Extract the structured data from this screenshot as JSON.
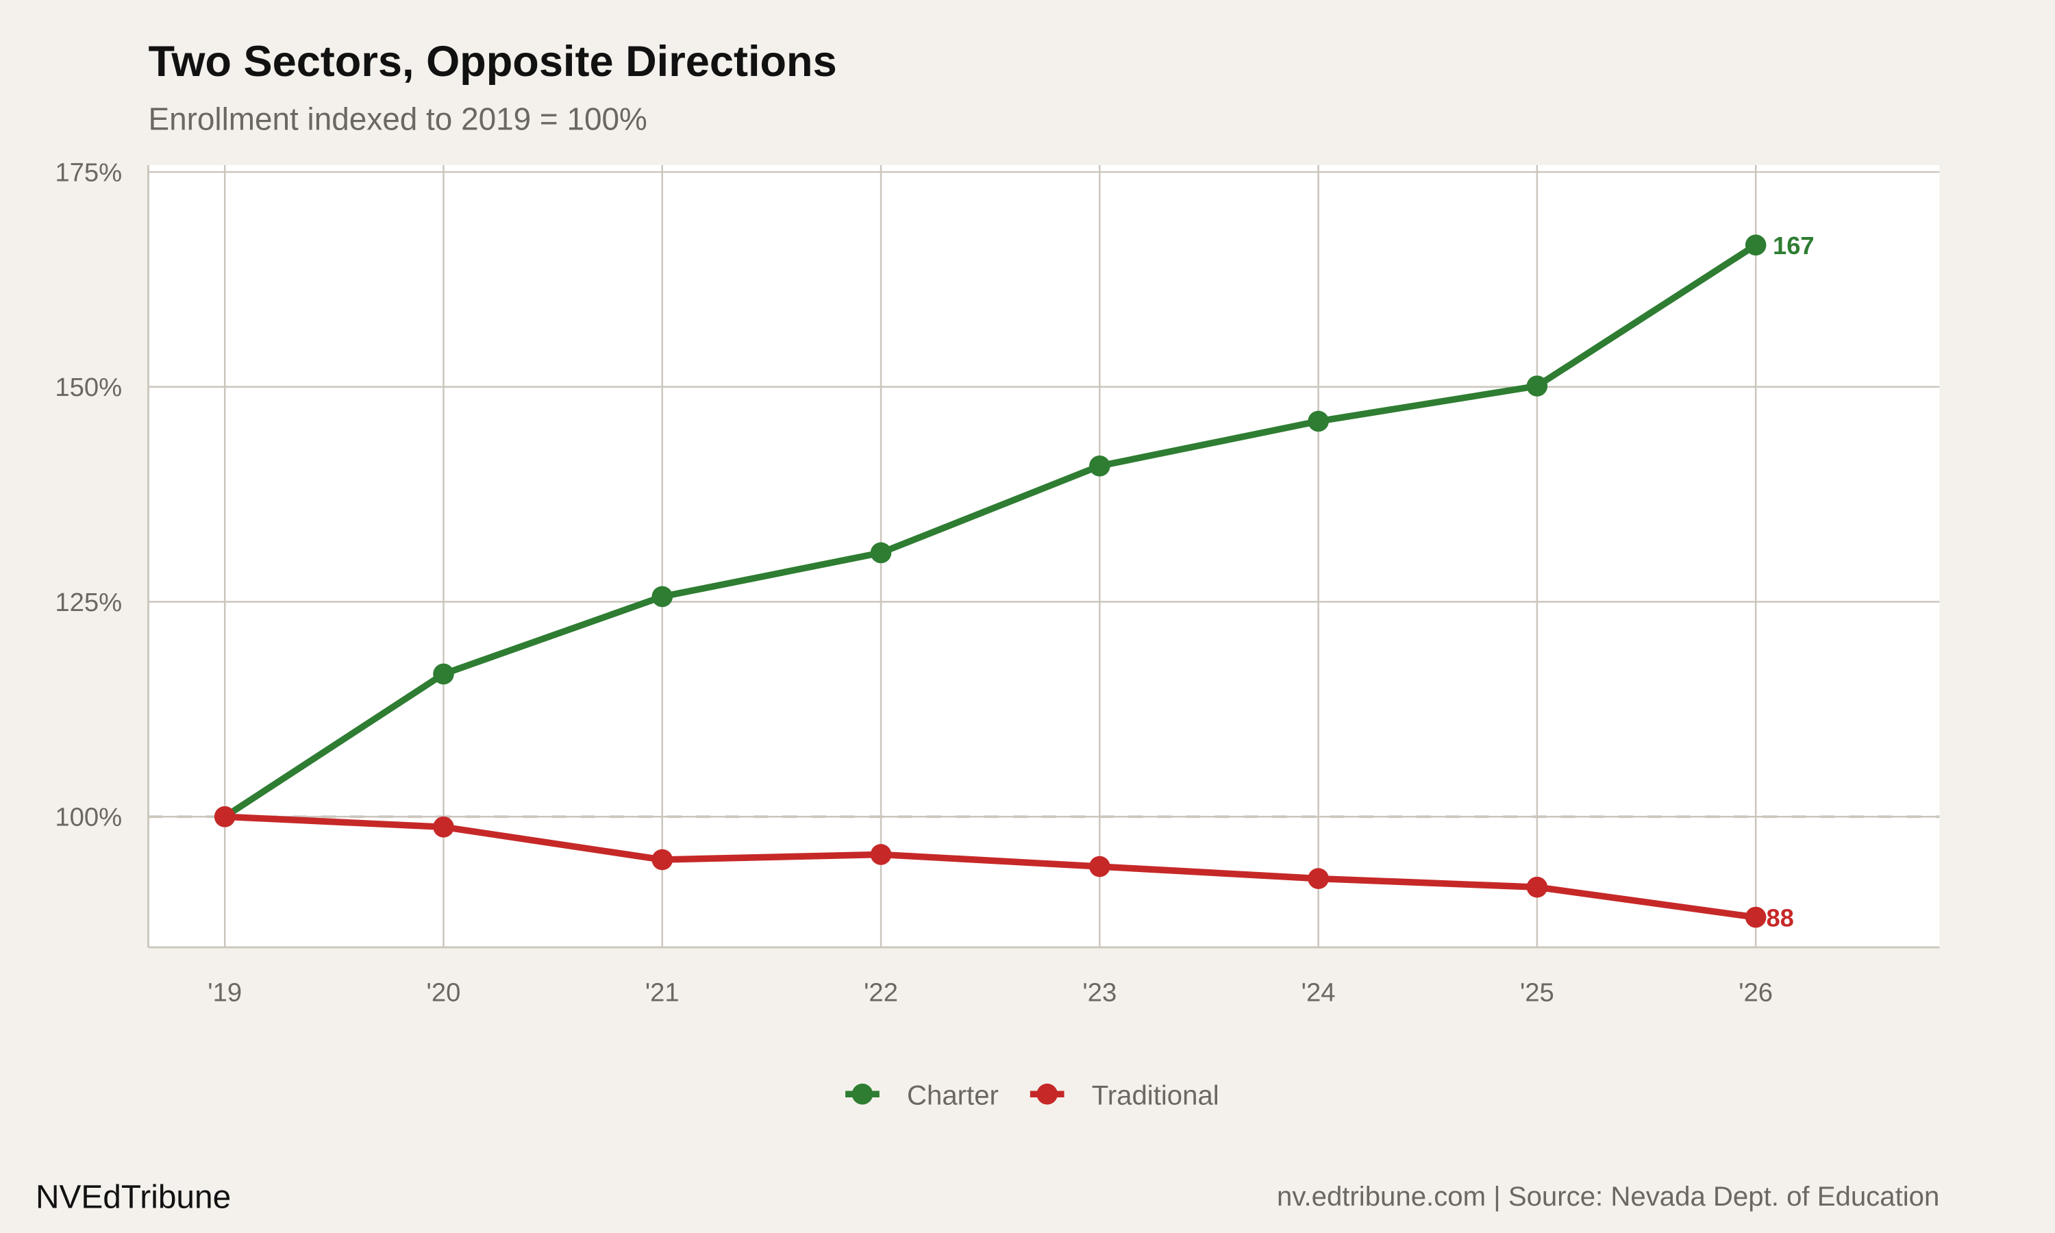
{
  "title": "Two Sectors, Opposite Directions",
  "subtitle": "Enrollment indexed to 2019 = 100%",
  "brand": "NVEdTribune",
  "caption": "nv.edtribune.com | Source: Nevada Dept. of Education",
  "chart_data": {
    "type": "line",
    "title": "Two Sectors, Opposite Directions",
    "subtitle": "Enrollment indexed to 2019 = 100%",
    "xlabel": "",
    "ylabel": "",
    "x": [
      2019,
      2020,
      2021,
      2022,
      2023,
      2024,
      2025,
      2026
    ],
    "x_tick_labels": [
      "'19",
      "'20",
      "'21",
      "'22",
      "'23",
      "'24",
      "'25",
      "'26"
    ],
    "y_ticks": [
      100,
      125,
      150,
      175
    ],
    "y_tick_labels": [
      "100%",
      "125%",
      "150%",
      "175%"
    ],
    "xlim": [
      2018.65,
      2026.84
    ],
    "ylim": [
      84.8,
      175.8
    ],
    "grid": true,
    "reference_line": {
      "y": 100,
      "style": "dashed"
    },
    "legend_position": "bottom",
    "series": [
      {
        "name": "Charter",
        "color": "#2e7d32",
        "values": [
          100,
          116.6,
          125.6,
          130.7,
          140.8,
          146.0,
          150.1,
          166.5
        ],
        "end_label": "167"
      },
      {
        "name": "Traditional",
        "color": "#c62828",
        "values": [
          100,
          98.8,
          95.0,
          95.6,
          94.2,
          92.8,
          91.8,
          88.3
        ],
        "end_label": "88"
      }
    ]
  }
}
